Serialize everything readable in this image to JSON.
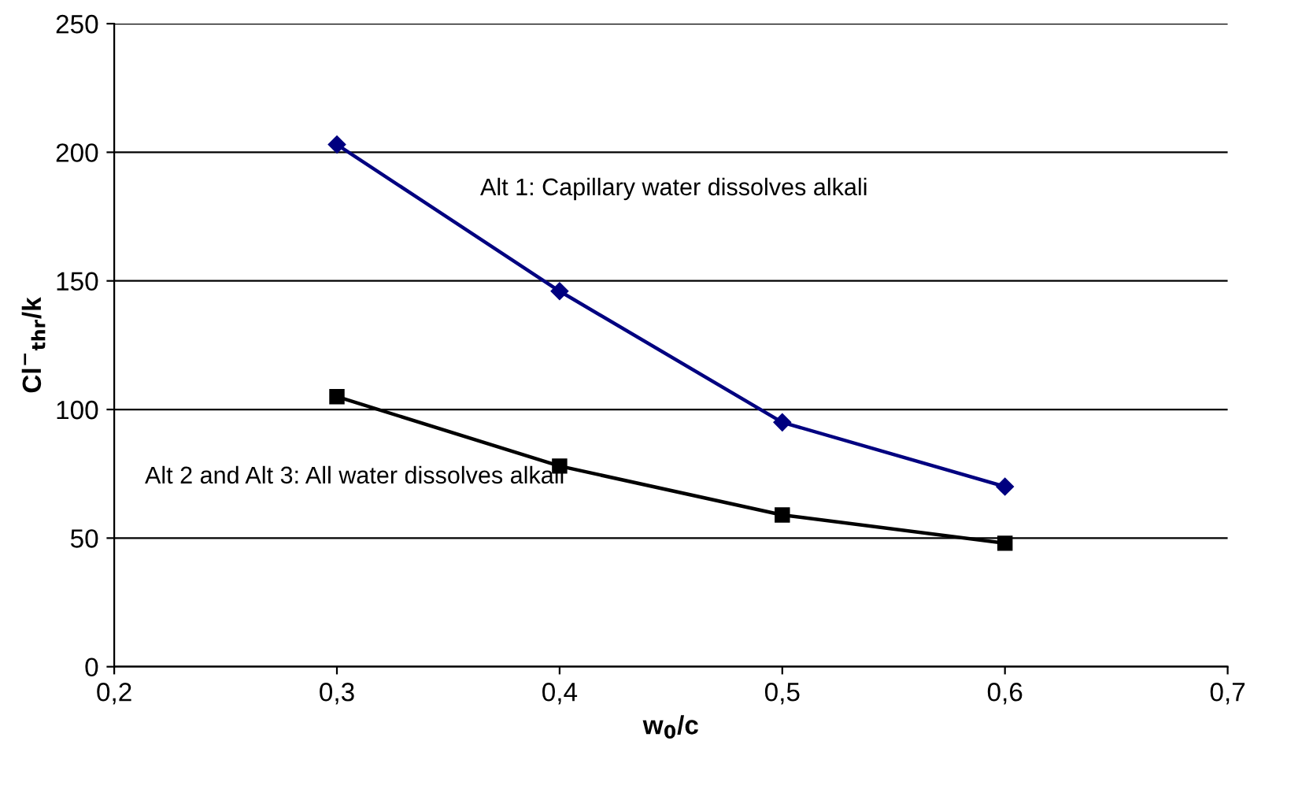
{
  "chart_data": {
    "type": "line",
    "xlabel": "w$_{0}$/c",
    "ylabel": "Cl$^{−}$$_{thr}$/k",
    "series": [
      {
        "name": null,
        "color": "#000080",
        "marker": "diamond",
        "x": [
          0.3,
          0.4,
          0.5,
          0.6
        ],
        "values": [
          203,
          146,
          95,
          70
        ]
      },
      {
        "name": null,
        "color": "#000000",
        "marker": "square",
        "x": [
          0.3,
          0.4,
          0.5,
          0.6
        ],
        "values": [
          105,
          78,
          59,
          48
        ]
      }
    ],
    "xlim": [
      0.2,
      0.7
    ],
    "xticks": [
      {
        "value": 0.2,
        "label": "0,2"
      },
      {
        "value": 0.3,
        "label": "0,3"
      },
      {
        "value": 0.4,
        "label": "0,4"
      },
      {
        "value": 0.5,
        "label": "0,5"
      },
      {
        "value": 0.6,
        "label": "0,6"
      },
      {
        "value": 0.7,
        "label": "0,7"
      }
    ],
    "ylim": [
      0,
      250
    ],
    "yticks": [
      0,
      50,
      100,
      150,
      200,
      250
    ],
    "grid": "y",
    "line_style": "solid",
    "annotations": [
      "Alt 1: Capillary water dissolves alkali",
      "Alt 2 and Alt 3: All water dissolves alkali"
    ]
  }
}
